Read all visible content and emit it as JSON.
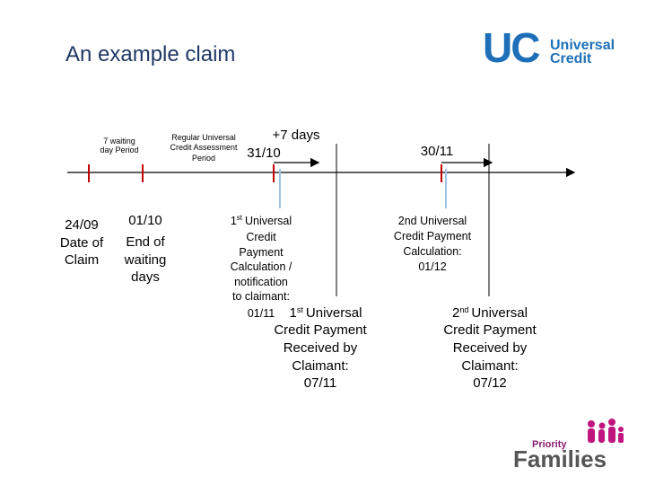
{
  "header": {
    "title": "An example claim"
  },
  "logo": {
    "mark": "UC",
    "line1": "Universal",
    "line2": "Credit"
  },
  "timeline": {
    "waiting_period": [
      "7 waiting",
      "day Period"
    ],
    "assessment_period": [
      "Regular Universal",
      "Credit Assessment",
      "Period"
    ],
    "plus_days": "+7 days",
    "date_a": "31/10",
    "date_b": "30/11",
    "claim": [
      "24/09",
      "Date of",
      "Claim"
    ],
    "end_waiting": [
      "01/10",
      "End of",
      "waiting",
      "days"
    ],
    "first_calc": {
      "ordinal": "1",
      "suffix": "st",
      "rest": "Universal",
      "lines": [
        "Credit",
        "Payment",
        "Calculation /",
        "notification",
        "to claimant:",
        "01/11"
      ]
    },
    "first_received": {
      "ordinal": "1",
      "suffix": "st",
      "rest": "Universal",
      "lines": [
        "Credit Payment",
        "Received by",
        "Claimant:",
        "07/11"
      ]
    },
    "second_calc": [
      "2nd Universal",
      "Credit Payment",
      "Calculation:",
      "01/12"
    ],
    "second_received": {
      "ordinal": "2",
      "suffix": "nd",
      "rest": "Universal",
      "lines": [
        "Credit Payment",
        "Received by",
        "Claimant:",
        "07/12"
      ]
    }
  },
  "footer_logo": {
    "line1": "Priority",
    "line2": "Families"
  }
}
